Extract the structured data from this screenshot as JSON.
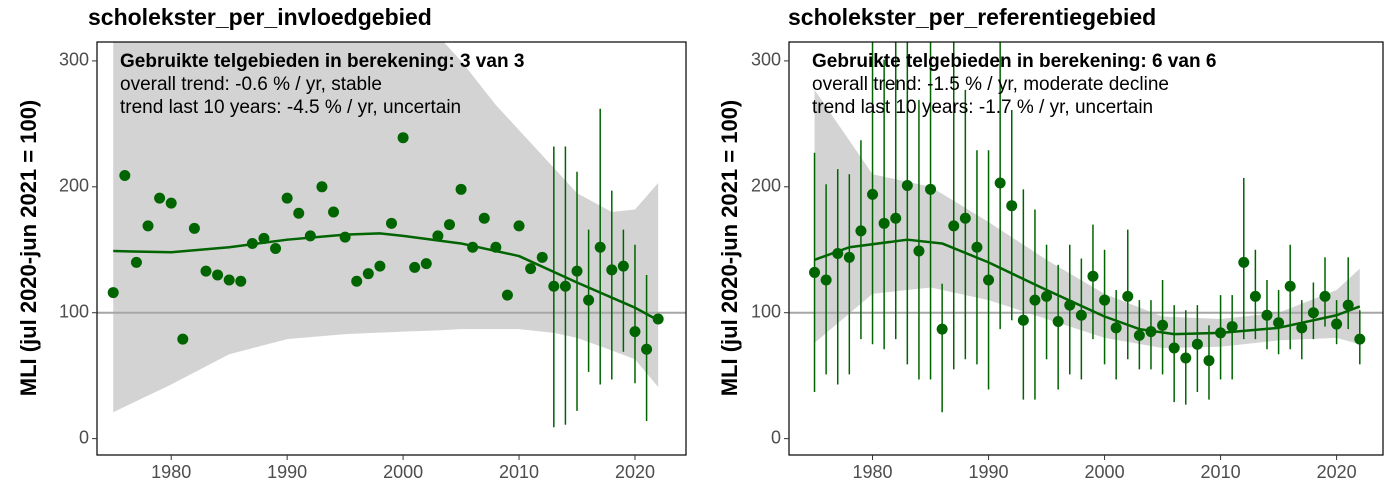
{
  "chart_data": [
    {
      "type": "scatter",
      "title": "scholekster_per_invloedgebied",
      "ylabel": "MLI (jul 2020-jun 2021 = 100)",
      "annotations": [
        "Gebruikte telgebieden in berekening: 3 van 3",
        "overall trend: -0.6 % / yr, stable",
        "trend last 10 years: -4.5 % / yr, uncertain"
      ],
      "color": "#006400",
      "band_color": "#d3d3d3",
      "hline": 100,
      "hline_color": "#a6a6a6",
      "xlim": [
        1973.6,
        2024.4
      ],
      "xticks": [
        1980,
        1990,
        2000,
        2010,
        2020
      ],
      "ylim": [
        -13,
        315
      ],
      "yticks": [
        0,
        100,
        200,
        300
      ],
      "x": [
        1975,
        1976,
        1977,
        1978,
        1979,
        1980,
        1981,
        1982,
        1983,
        1984,
        1985,
        1986,
        1987,
        1988,
        1989,
        1990,
        1991,
        1992,
        1993,
        1994,
        1995,
        1996,
        1997,
        1998,
        1999,
        2000,
        2001,
        2002,
        2003,
        2004,
        2005,
        2006,
        2007,
        2008,
        2009,
        2010,
        2011,
        2012,
        2013,
        2014,
        2015,
        2016,
        2017,
        2018,
        2019,
        2020,
        2021,
        2022
      ],
      "values": [
        116,
        209,
        140,
        169,
        191,
        187,
        79,
        167,
        133,
        130,
        126,
        125,
        155,
        159,
        151,
        191,
        179,
        161,
        200,
        180,
        160,
        125,
        131,
        137,
        171,
        239,
        136,
        139,
        161,
        170,
        198,
        152,
        175,
        152,
        114,
        169,
        135,
        144,
        121,
        121,
        133,
        110,
        152,
        134,
        137,
        85,
        71,
        95
      ],
      "upper": [
        null,
        null,
        null,
        null,
        null,
        null,
        null,
        null,
        null,
        null,
        null,
        null,
        null,
        null,
        null,
        null,
        null,
        null,
        null,
        null,
        null,
        null,
        null,
        null,
        null,
        null,
        null,
        null,
        null,
        null,
        null,
        null,
        null,
        null,
        null,
        null,
        null,
        null,
        232,
        232,
        212,
        166,
        262,
        197,
        166,
        154,
        130,
        null
      ],
      "lower": [
        null,
        null,
        null,
        null,
        null,
        null,
        null,
        null,
        null,
        null,
        null,
        null,
        null,
        null,
        null,
        null,
        null,
        null,
        null,
        null,
        null,
        null,
        null,
        null,
        null,
        null,
        null,
        null,
        null,
        null,
        null,
        null,
        null,
        null,
        null,
        null,
        null,
        null,
        9,
        11,
        22,
        53,
        43,
        47,
        69,
        44,
        14,
        null
      ],
      "trend": {
        "x": [
          1975,
          1980,
          1985,
          1990,
          1995,
          1998,
          2000,
          2005,
          2010,
          2015,
          2020,
          2022
        ],
        "values": [
          149,
          148,
          152,
          158,
          162,
          163,
          161,
          155,
          145,
          124,
          104,
          94
        ]
      },
      "band": {
        "x": [
          1975,
          1980,
          1985,
          1990,
          1995,
          2000,
          2003,
          2005,
          2008,
          2010,
          2013,
          2015,
          2018,
          2020,
          2022
        ],
        "upper": [
          420,
          390,
          370,
          350,
          340,
          335,
          320,
          300,
          265,
          245,
          215,
          195,
          180,
          182,
          203
        ],
        "lower": [
          21,
          43,
          67,
          79,
          83,
          85,
          86,
          87,
          87,
          87,
          84,
          80,
          70,
          63,
          41
        ]
      }
    },
    {
      "type": "scatter",
      "title": "scholekster_per_referentiegebied",
      "ylabel": "MLI (jul 2020-jun 2021 = 100)",
      "annotations": [
        "Gebruikte telgebieden in berekening: 6 van 6",
        "overall trend: -1.5 % / yr, moderate decline",
        "trend last 10 years: -1.7 % / yr, uncertain"
      ],
      "color": "#006400",
      "band_color": "#d3d3d3",
      "hline": 100,
      "hline_color": "#a6a6a6",
      "xlim": [
        1972.8,
        2024
      ],
      "xticks": [
        1980,
        1990,
        2000,
        2010,
        2020
      ],
      "ylim": [
        -13,
        315
      ],
      "yticks": [
        0,
        100,
        200,
        300
      ],
      "x": [
        1975,
        1976,
        1977,
        1978,
        1979,
        1980,
        1981,
        1982,
        1983,
        1984,
        1985,
        1986,
        1987,
        1988,
        1989,
        1990,
        1991,
        1992,
        1993,
        1994,
        1995,
        1996,
        1997,
        1998,
        1999,
        2000,
        2001,
        2002,
        2003,
        2004,
        2005,
        2006,
        2007,
        2008,
        2009,
        2010,
        2011,
        2012,
        2013,
        2014,
        2015,
        2016,
        2017,
        2018,
        2019,
        2020,
        2021,
        2022
      ],
      "values": [
        132,
        126,
        147,
        144,
        165,
        194,
        171,
        175,
        201,
        149,
        198,
        87,
        169,
        175,
        152,
        126,
        203,
        185,
        94,
        110,
        113,
        93,
        106,
        98,
        129,
        110,
        88,
        113,
        82,
        85,
        90,
        72,
        64,
        75,
        62,
        84,
        89,
        140,
        113,
        98,
        92,
        121,
        88,
        100,
        113,
        91,
        106,
        79
      ],
      "upper": [
        227,
        202,
        214,
        210,
        237,
        330,
        301,
        330,
        330,
        269,
        330,
        123,
        330,
        277,
        229,
        229,
        330,
        261,
        198,
        182,
        154,
        138,
        154,
        143,
        170,
        150,
        118,
        166,
        110,
        110,
        126,
        106,
        102,
        106,
        90,
        114,
        114,
        207,
        150,
        126,
        118,
        154,
        110,
        124,
        144,
        110,
        144,
        102
      ],
      "lower": [
        37,
        51,
        43,
        51,
        79,
        75,
        71,
        79,
        59,
        47,
        47,
        21,
        55,
        63,
        59,
        39,
        87,
        94,
        31,
        31,
        63,
        39,
        51,
        47,
        79,
        59,
        47,
        63,
        55,
        55,
        51,
        29,
        27,
        37,
        31,
        47,
        47,
        79,
        79,
        71,
        67,
        71,
        63,
        79,
        89,
        75,
        87,
        59
      ],
      "trend": {
        "x": [
          1975,
          1978,
          1983,
          1986,
          1990,
          1995,
          2000,
          2003,
          2006,
          2010,
          2015,
          2020,
          2022
        ],
        "values": [
          142,
          152,
          158,
          155,
          140,
          118,
          97,
          87,
          83,
          84,
          88,
          98,
          105
        ]
      },
      "band": {
        "x": [
          1975,
          1980,
          1985,
          1990,
          1995,
          2000,
          2005,
          2010,
          2015,
          2020,
          2022
        ],
        "upper": [
          277,
          210,
          200,
          172,
          142,
          115,
          97,
          95,
          100,
          118,
          135
        ],
        "lower": [
          76,
          115,
          120,
          110,
          95,
          80,
          72,
          73,
          78,
          80,
          75
        ]
      }
    }
  ]
}
